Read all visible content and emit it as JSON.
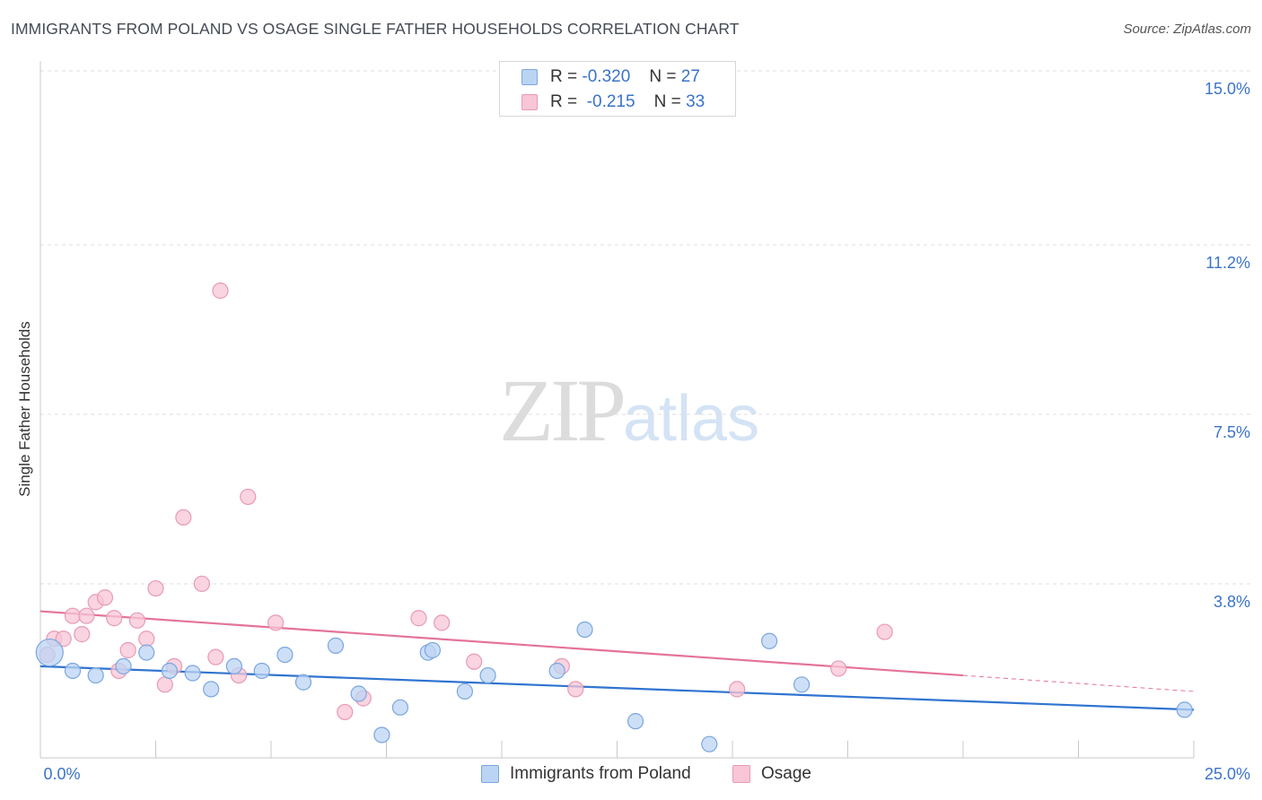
{
  "header": {
    "title": "IMMIGRANTS FROM POLAND VS OSAGE SINGLE FATHER HOUSEHOLDS CORRELATION CHART",
    "source": "Source: ZipAtlas.com"
  },
  "watermark": {
    "zip": "ZIP",
    "atlas": "atlas"
  },
  "legend": {
    "rows": [
      {
        "r_label": "R =",
        "r_value": "-0.320",
        "n_label": "N =",
        "n_value": "27"
      },
      {
        "r_label": "R =",
        "r_value": "-0.215",
        "n_label": "N =",
        "n_value": "33"
      }
    ]
  },
  "colors": {
    "blue_fill": "#bcd4f4",
    "blue_stroke": "#7aa6e0",
    "blue_line": "#2f74d0",
    "pink_fill": "#f8c6d6",
    "pink_stroke": "#e89ab4",
    "pink_line": "#e4739a",
    "tick_text": "#3a73c8",
    "grid": "#dddddd"
  },
  "chart_data": {
    "type": "scatter",
    "title": "IMMIGRANTS FROM POLAND VS OSAGE SINGLE FATHER HOUSEHOLDS CORRELATION CHART",
    "xlabel": "",
    "ylabel": "Single Father Households",
    "xlim": [
      0,
      25
    ],
    "ylim": [
      0,
      15
    ],
    "x_tick_labels": [
      "0.0%",
      "25.0%"
    ],
    "y_ticks": [
      3.8,
      7.5,
      11.2,
      15.0
    ],
    "y_tick_labels": [
      "3.8%",
      "7.5%",
      "11.2%",
      "15.0%"
    ],
    "grid": true,
    "series": [
      {
        "name": "Immigrants from Poland",
        "color": "blue",
        "r": -0.32,
        "n": 27,
        "trend": {
          "x0": 0,
          "y0": 2.0,
          "x1": 25,
          "y1": 1.05
        },
        "points": [
          {
            "x": 0.2,
            "y": 2.3,
            "big": true
          },
          {
            "x": 0.7,
            "y": 1.9
          },
          {
            "x": 1.2,
            "y": 1.8
          },
          {
            "x": 1.8,
            "y": 2.0
          },
          {
            "x": 2.3,
            "y": 2.3
          },
          {
            "x": 2.8,
            "y": 1.9
          },
          {
            "x": 3.3,
            "y": 1.85
          },
          {
            "x": 3.7,
            "y": 1.5
          },
          {
            "x": 4.2,
            "y": 2.0
          },
          {
            "x": 4.8,
            "y": 1.9
          },
          {
            "x": 5.3,
            "y": 2.25
          },
          {
            "x": 5.7,
            "y": 1.65
          },
          {
            "x": 6.4,
            "y": 2.45
          },
          {
            "x": 6.9,
            "y": 1.4
          },
          {
            "x": 7.4,
            "y": 0.5
          },
          {
            "x": 7.8,
            "y": 1.1
          },
          {
            "x": 8.4,
            "y": 2.3
          },
          {
            "x": 8.5,
            "y": 2.35
          },
          {
            "x": 9.2,
            "y": 1.45
          },
          {
            "x": 9.7,
            "y": 1.8
          },
          {
            "x": 11.2,
            "y": 1.9
          },
          {
            "x": 11.8,
            "y": 2.8
          },
          {
            "x": 12.9,
            "y": 0.8
          },
          {
            "x": 14.5,
            "y": 0.3
          },
          {
            "x": 15.8,
            "y": 2.55
          },
          {
            "x": 16.5,
            "y": 1.6
          },
          {
            "x": 24.8,
            "y": 1.05
          }
        ]
      },
      {
        "name": "Osage",
        "color": "pink",
        "r": -0.215,
        "n": 33,
        "trend": {
          "x0": 0,
          "y0": 3.2,
          "x1": 20,
          "y1": 1.8,
          "dash_to_x": 25,
          "dash_to_y": 1.45
        },
        "points": [
          {
            "x": 0.15,
            "y": 2.25
          },
          {
            "x": 0.3,
            "y": 2.6
          },
          {
            "x": 0.5,
            "y": 2.6
          },
          {
            "x": 0.7,
            "y": 3.1
          },
          {
            "x": 0.9,
            "y": 2.7
          },
          {
            "x": 1.0,
            "y": 3.1
          },
          {
            "x": 1.2,
            "y": 3.4
          },
          {
            "x": 1.4,
            "y": 3.5
          },
          {
            "x": 1.6,
            "y": 3.05
          },
          {
            "x": 1.7,
            "y": 1.9
          },
          {
            "x": 1.9,
            "y": 2.35
          },
          {
            "x": 2.1,
            "y": 3.0
          },
          {
            "x": 2.3,
            "y": 2.6
          },
          {
            "x": 2.5,
            "y": 3.7
          },
          {
            "x": 2.7,
            "y": 1.6
          },
          {
            "x": 2.9,
            "y": 2.0
          },
          {
            "x": 3.1,
            "y": 5.25
          },
          {
            "x": 3.5,
            "y": 3.8
          },
          {
            "x": 3.8,
            "y": 2.2
          },
          {
            "x": 3.9,
            "y": 10.2
          },
          {
            "x": 4.3,
            "y": 1.8
          },
          {
            "x": 4.5,
            "y": 5.7
          },
          {
            "x": 5.1,
            "y": 2.95
          },
          {
            "x": 6.6,
            "y": 1.0
          },
          {
            "x": 7.0,
            "y": 1.3
          },
          {
            "x": 8.2,
            "y": 3.05
          },
          {
            "x": 8.7,
            "y": 2.95
          },
          {
            "x": 9.4,
            "y": 2.1
          },
          {
            "x": 11.3,
            "y": 2.0
          },
          {
            "x": 11.6,
            "y": 1.5
          },
          {
            "x": 15.1,
            "y": 1.5
          },
          {
            "x": 17.3,
            "y": 1.95
          },
          {
            "x": 18.3,
            "y": 2.75
          }
        ]
      }
    ]
  },
  "bottom_legend": {
    "items": [
      {
        "label": "Immigrants from Poland",
        "color": "blue"
      },
      {
        "label": "Osage",
        "color": "pink"
      }
    ]
  }
}
